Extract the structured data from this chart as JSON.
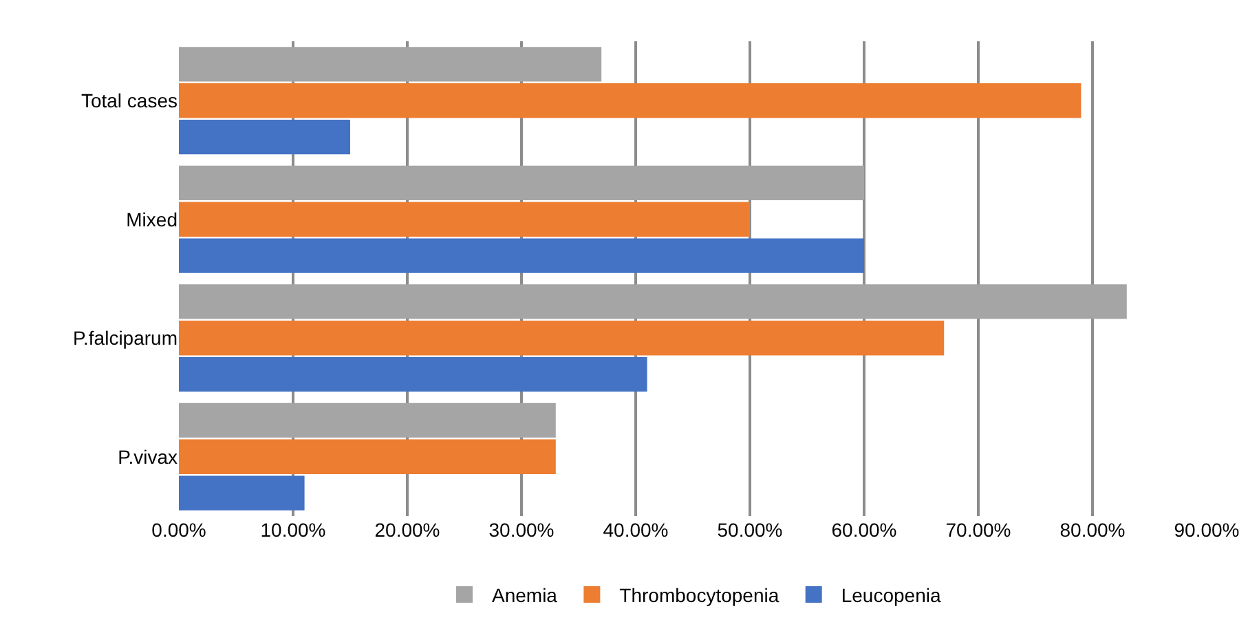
{
  "chart_data": {
    "type": "bar",
    "orientation": "horizontal",
    "categories": [
      "Total cases",
      "Mixed",
      "P.falciparum",
      "P.vivax"
    ],
    "series": [
      {
        "name": "Anemia",
        "color": "#a5a5a5",
        "values": [
          37,
          60,
          83,
          33
        ]
      },
      {
        "name": "Thrombocytopenia",
        "color": "#ed7d31",
        "values": [
          79,
          50,
          67,
          33
        ]
      },
      {
        "name": "Leucopenia",
        "color": "#4472c4",
        "values": [
          15,
          60,
          41,
          11
        ]
      }
    ],
    "xlim": [
      0,
      90
    ],
    "xticks": [
      {
        "value": 0,
        "label": "0.00%"
      },
      {
        "value": 10,
        "label": "10.00%"
      },
      {
        "value": 20,
        "label": "20.00%"
      },
      {
        "value": 30,
        "label": "30.00%"
      },
      {
        "value": 40,
        "label": "40.00%"
      },
      {
        "value": 50,
        "label": "50.00%"
      },
      {
        "value": 60,
        "label": "60.00%"
      },
      {
        "value": 70,
        "label": "70.00%"
      },
      {
        "value": 80,
        "label": "80.00%"
      },
      {
        "value": 90,
        "label": "90.00%"
      }
    ],
    "grid": "x",
    "legend": "bottom"
  }
}
